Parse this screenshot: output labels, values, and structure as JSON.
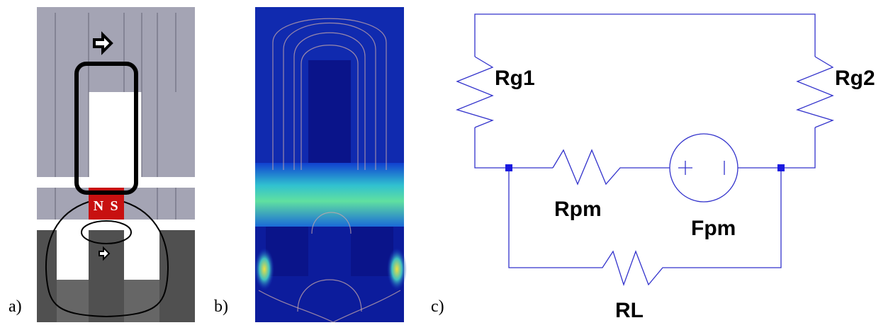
{
  "panels": [
    {
      "label": "a)",
      "magnet": {
        "north": "N",
        "south": "S"
      }
    },
    {
      "label": "b)"
    },
    {
      "label": "c)",
      "components": {
        "rg1": "Rg1",
        "rg2": "Rg2",
        "rpm": "Rpm",
        "fpm": "Fpm",
        "rl": "RL"
      }
    }
  ]
}
